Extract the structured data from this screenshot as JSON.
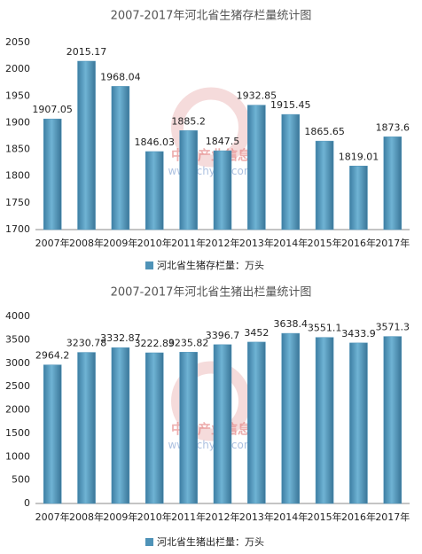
{
  "chart_data": [
    {
      "type": "bar",
      "title": "2007-2017年河北省生猪存栏量统计图",
      "categories": [
        "2007年",
        "2008年",
        "2009年",
        "2010年",
        "2011年",
        "2012年",
        "2013年",
        "2014年",
        "2015年",
        "2016年",
        "2017年"
      ],
      "series": [
        {
          "name": "河北省生猪存栏量：万头",
          "color": "#4f93b8",
          "values": [
            1907.05,
            2015.17,
            1968.04,
            1846.03,
            1885.2,
            1847.5,
            1932.85,
            1915.45,
            1865.65,
            1819.01,
            1873.6
          ]
        }
      ],
      "ylim": [
        1700,
        2050
      ],
      "yticks": [
        1700,
        1750,
        1800,
        1850,
        1900,
        1950,
        2000,
        2050
      ],
      "grid": false
    },
    {
      "type": "bar",
      "title": "2007-2017年河北省生猪出栏量统计图",
      "categories": [
        "2007年",
        "2008年",
        "2009年",
        "2010年",
        "2011年",
        "2012年",
        "2013年",
        "2014年",
        "2015年",
        "2016年",
        "2017年"
      ],
      "series": [
        {
          "name": "河北省生猪出栏量：万头",
          "color": "#4f93b8",
          "values": [
            2964.2,
            3230.78,
            3332.87,
            3222.89,
            3235.82,
            3396.7,
            3452,
            3638.4,
            3551.1,
            3433.9,
            3571.3
          ]
        }
      ],
      "ylim": [
        0,
        4000
      ],
      "yticks": [
        0,
        500,
        1000,
        1500,
        2000,
        2500,
        3000,
        3500,
        4000
      ],
      "grid": false
    }
  ],
  "watermark": {
    "name": "中国产业信息",
    "url": "www.chyxx.com"
  }
}
